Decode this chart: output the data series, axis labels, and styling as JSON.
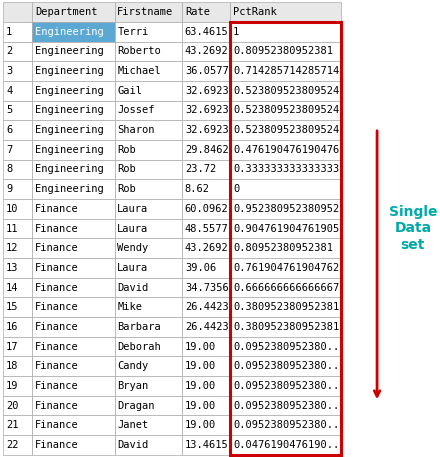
{
  "rows": [
    [
      "1",
      "Engineering",
      "Terri",
      "63.4615",
      "1"
    ],
    [
      "2",
      "Engineering",
      "Roberto",
      "43.2692",
      "0.80952380952381"
    ],
    [
      "3",
      "Engineering",
      "Michael",
      "36.0577",
      "0.714285714285714"
    ],
    [
      "4",
      "Engineering",
      "Gail",
      "32.6923",
      "0.523809523809524"
    ],
    [
      "5",
      "Engineering",
      "Jossef",
      "32.6923",
      "0.523809523809524"
    ],
    [
      "6",
      "Engineering",
      "Sharon",
      "32.6923",
      "0.523809523809524"
    ],
    [
      "7",
      "Engineering",
      "Rob",
      "29.8462",
      "0.476190476190476"
    ],
    [
      "8",
      "Engineering",
      "Rob",
      "23.72",
      "0.333333333333333"
    ],
    [
      "9",
      "Engineering",
      "Rob",
      "8.62",
      "0"
    ],
    [
      "10",
      "Finance",
      "Laura",
      "60.0962",
      "0.952380952380952"
    ],
    [
      "11",
      "Finance",
      "Laura",
      "48.5577",
      "0.904761904761905"
    ],
    [
      "12",
      "Finance",
      "Wendy",
      "43.2692",
      "0.80952380952381"
    ],
    [
      "13",
      "Finance",
      "Laura",
      "39.06",
      "0.761904761904762"
    ],
    [
      "14",
      "Finance",
      "David",
      "34.7356",
      "0.666666666666667"
    ],
    [
      "15",
      "Finance",
      "Mike",
      "26.4423",
      "0.380952380952381"
    ],
    [
      "16",
      "Finance",
      "Barbara",
      "26.4423",
      "0.380952380952381"
    ],
    [
      "17",
      "Finance",
      "Deborah",
      "19.00",
      "0.0952380952380..."
    ],
    [
      "18",
      "Finance",
      "Candy",
      "19.00",
      "0.0952380952380..."
    ],
    [
      "19",
      "Finance",
      "Bryan",
      "19.00",
      "0.0952380952380..."
    ],
    [
      "20",
      "Finance",
      "Dragan",
      "19.00",
      "0.0952380952380..."
    ],
    [
      "21",
      "Finance",
      "Janet",
      "19.00",
      "0.0952380952380..."
    ],
    [
      "22",
      "Finance",
      "David",
      "13.4615",
      "0.0476190476190..."
    ]
  ],
  "col_headers": [
    "",
    "Department",
    "Firstname",
    "Rate",
    "PctRank"
  ],
  "col_widths": [
    0.3,
    0.85,
    0.7,
    0.5,
    1.15
  ],
  "highlight_row": 0,
  "highlight_dept_color": "#5ba8d4",
  "highlight_dept_text": "#ffffff",
  "red_box_color": "#cc0000",
  "arrow_color": "#cc0000",
  "annotation_color": "#00aaaa",
  "annotation_text": "Single\nData\nset",
  "header_bg": "#e8e8e8",
  "row_bg": "#ffffff",
  "grid_color": "#aaaaaa",
  "font_size": 7.5,
  "font_family": "DejaVu Sans Mono"
}
